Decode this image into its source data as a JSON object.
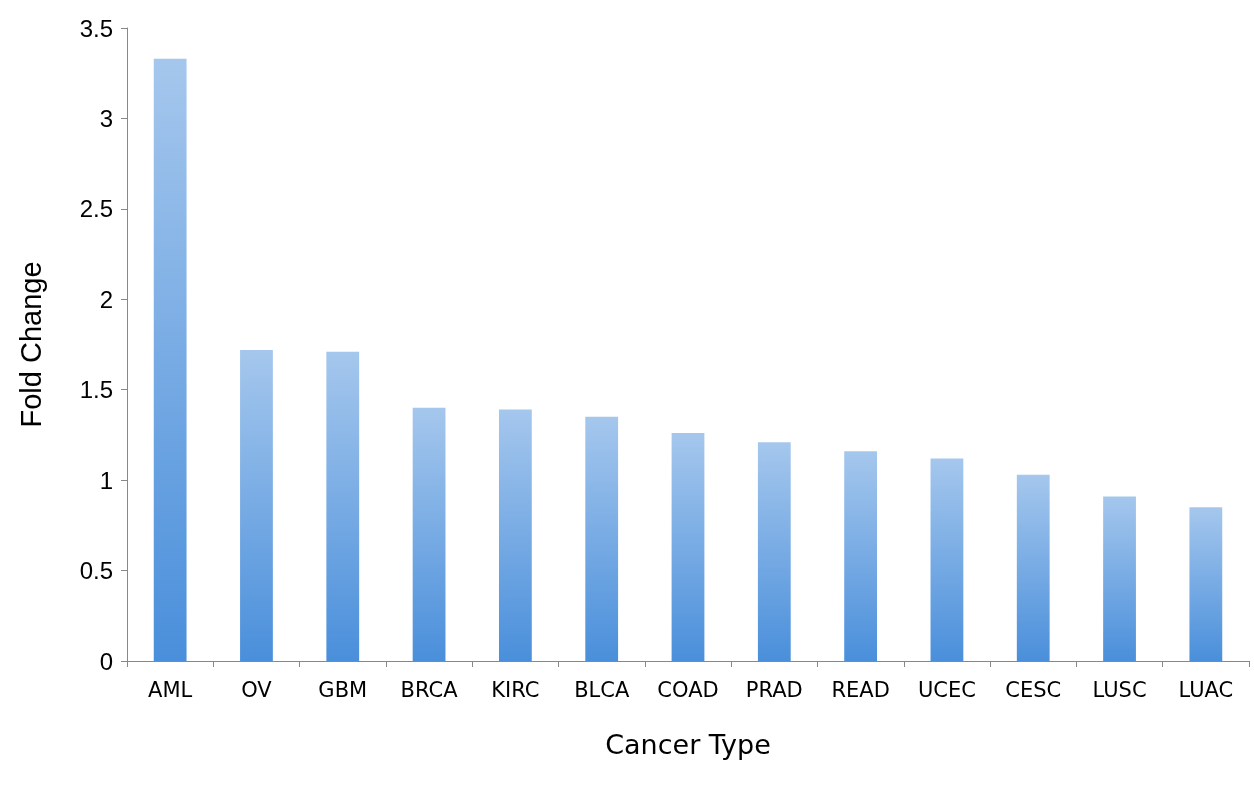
{
  "chart_data": {
    "type": "bar",
    "xlabel": "Cancer Type",
    "ylabel": "Fold Change",
    "categories": [
      "AML",
      "OV",
      "GBM",
      "BRCA",
      "KIRC",
      "BLCA",
      "COAD",
      "PRAD",
      "READ",
      "UCEC",
      "CESC",
      "LUSC",
      "LUAC"
    ],
    "values": [
      3.33,
      1.72,
      1.71,
      1.4,
      1.39,
      1.35,
      1.26,
      1.21,
      1.16,
      1.12,
      1.03,
      0.91,
      0.85
    ],
    "color": "#4a8fdb",
    "ylim": [
      0,
      3.5
    ],
    "yticks": [
      0,
      0.5,
      1,
      1.5,
      2,
      2.5,
      3,
      3.5
    ],
    "grid": false
  }
}
